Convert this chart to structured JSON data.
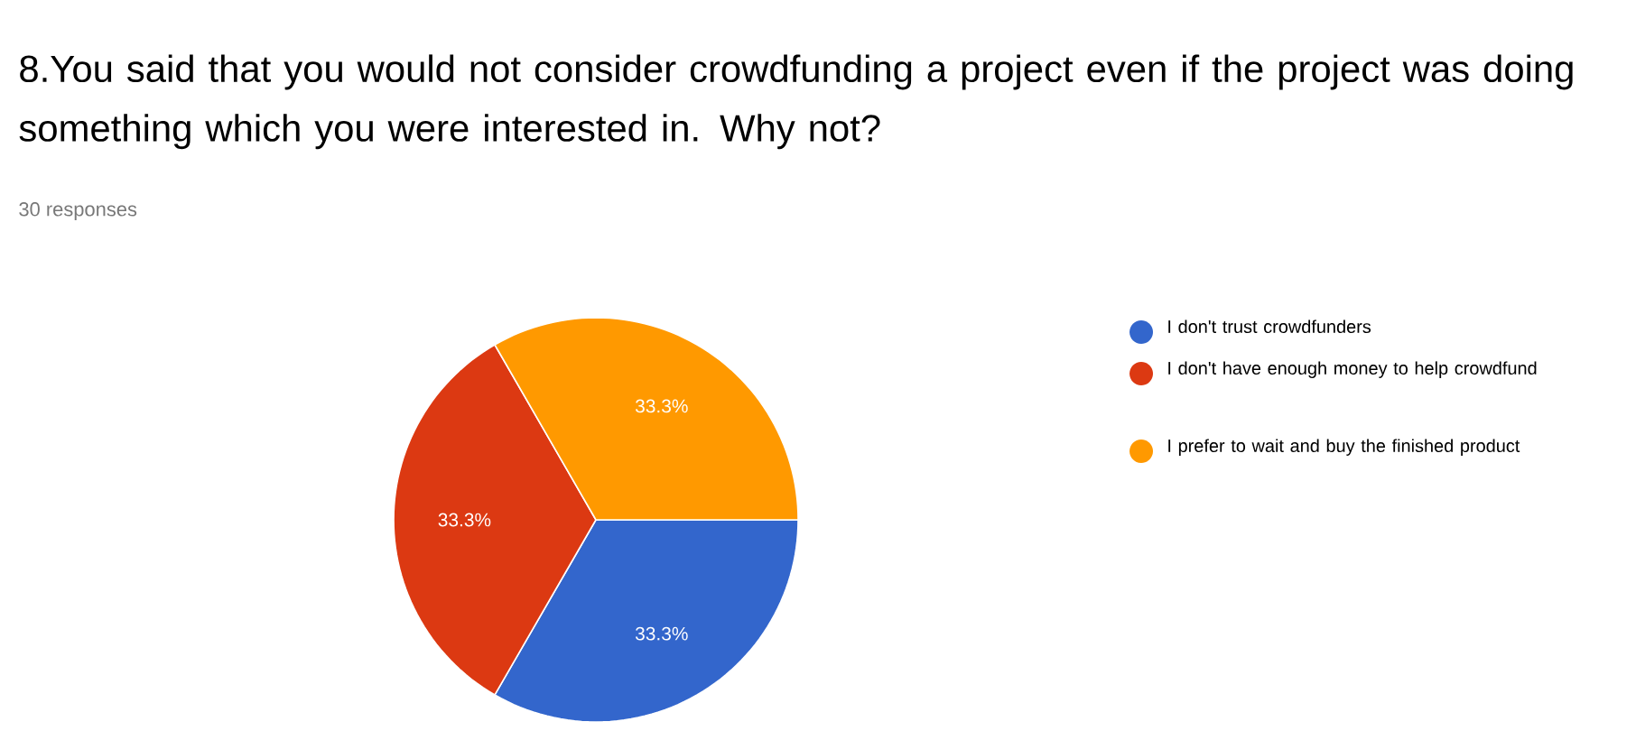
{
  "chart_data": {
    "type": "pie",
    "title": "8.You said that you would not consider crowdfunding a project even if the project was doing something which you were interested in. Why not?",
    "subtitle": "30 responses",
    "categories": [
      "I don't trust crowdfunders",
      "I don't have enough money to help crowdfund",
      "I prefer to wait and buy the finished product"
    ],
    "values": [
      33.3,
      33.3,
      33.3
    ],
    "colors": [
      "#3366cc",
      "#dc3912",
      "#ff9900"
    ],
    "value_labels": [
      "33.3%",
      "33.3%",
      "33.3%"
    ],
    "legend": "right"
  }
}
